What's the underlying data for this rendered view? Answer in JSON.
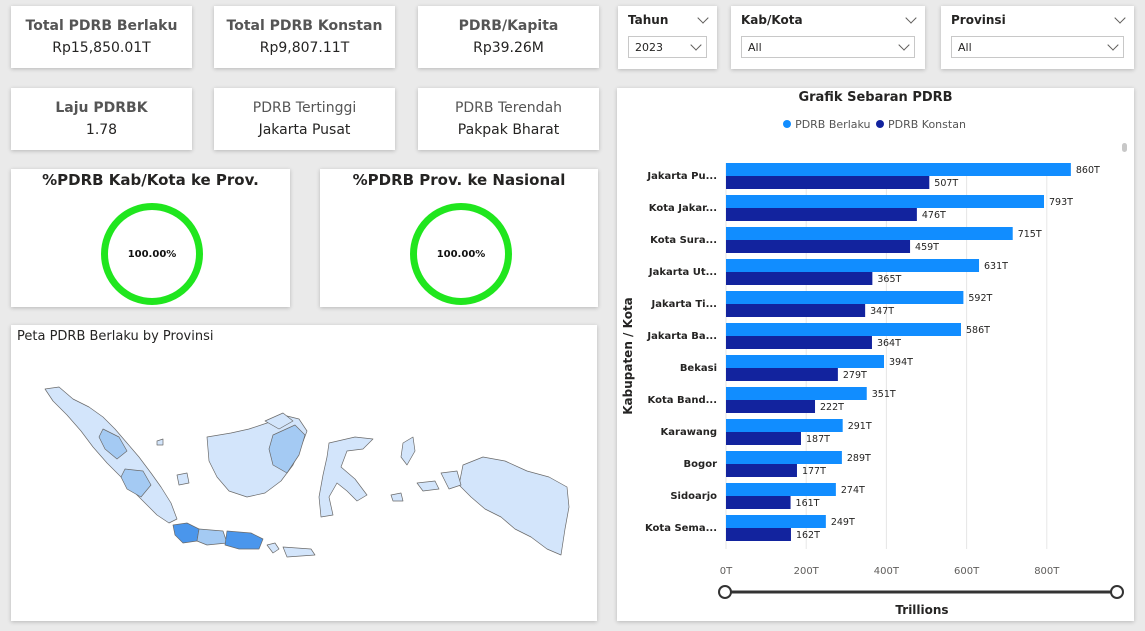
{
  "kpis": {
    "total_berlaku": {
      "label": "Total PDRB Berlaku",
      "value": "Rp15,850.01T"
    },
    "total_konstan": {
      "label": "Total PDRB Konstan",
      "value": "Rp9,807.11T"
    },
    "per_kapita": {
      "label": "PDRB/Kapita",
      "value": "Rp39.26M"
    },
    "laju": {
      "label": "Laju PDRBK",
      "value": "1.78"
    },
    "tertinggi": {
      "label": "PDRB Tertinggi",
      "value": "Jakarta Pusat"
    },
    "terendah": {
      "label": "PDRB Terendah",
      "value": "Pakpak Bharat"
    }
  },
  "slicers": {
    "tahun": {
      "label": "Tahun",
      "value": "2023"
    },
    "kab_kota": {
      "label": "Kab/Kota",
      "value": "All"
    },
    "provinsi": {
      "label": "Provinsi",
      "value": "All"
    }
  },
  "gauges": {
    "kab_prov": {
      "title": "%PDRB Kab/Kota ke Prov.",
      "value": "100.00%"
    },
    "prov_nas": {
      "title": "%PDRB Prov. ke Nasional",
      "value": "100.00%"
    }
  },
  "map": {
    "title": "Peta PDRB Berlaku by Provinsi"
  },
  "colors": {
    "berlaku": "#118dff",
    "konstan": "#12239e",
    "gauge": "#20e61e",
    "map_light": "#d3e5fb",
    "map_mid": "#a4caf3",
    "map_dark": "#4a96ec"
  },
  "chart_data": {
    "type": "bar",
    "orientation": "horizontal",
    "title": "Grafik Sebaran PDRB",
    "xlabel": "Trillions",
    "ylabel": "Kabupaten / Kota",
    "xlim": [
      0,
      1000
    ],
    "x_ticks": [
      "0T",
      "200T",
      "400T",
      "600T",
      "800T"
    ],
    "grid": true,
    "legend_position": "top",
    "categories": [
      "Jakarta Pu...",
      "Kota Jakar...",
      "Kota Sura...",
      "Jakarta Ut...",
      "Jakarta Ti...",
      "Jakarta Ba...",
      "Bekasi",
      "Kota Band...",
      "Karawang",
      "Bogor",
      "Sidoarjo",
      "Kota Sema..."
    ],
    "series": [
      {
        "name": "PDRB Berlaku",
        "values": [
          860,
          793,
          715,
          631,
          592,
          586,
          394,
          351,
          291,
          289,
          274,
          249
        ],
        "labels": [
          "860T",
          "793T",
          "715T",
          "631T",
          "592T",
          "586T",
          "394T",
          "351T",
          "291T",
          "289T",
          "274T",
          "249T"
        ]
      },
      {
        "name": "PDRB Konstan",
        "values": [
          507,
          476,
          459,
          365,
          347,
          364,
          279,
          222,
          187,
          177,
          161,
          162
        ],
        "labels": [
          "507T",
          "476T",
          "459T",
          "365T",
          "347T",
          "364T",
          "279T",
          "222T",
          "187T",
          "177T",
          "161T",
          "162T"
        ]
      }
    ]
  }
}
